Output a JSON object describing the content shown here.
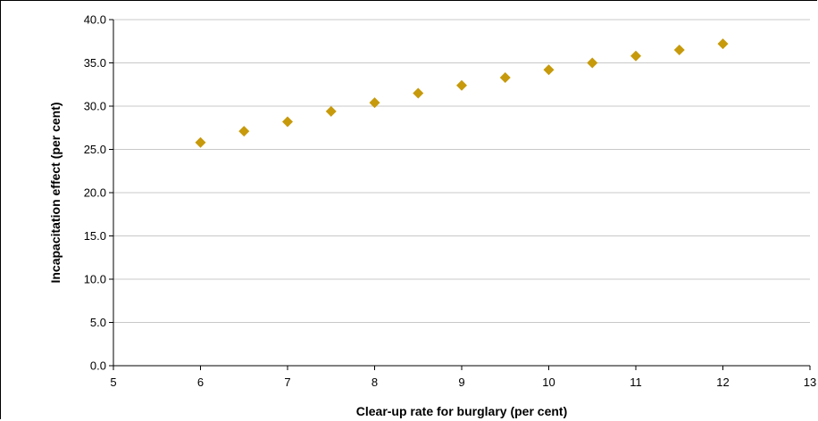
{
  "chart_data": {
    "type": "scatter",
    "title": "",
    "xlabel": "Clear-up rate for burglary (per cent)",
    "ylabel": "Incapacitation effect (per cent)",
    "xlim": [
      5,
      13
    ],
    "ylim": [
      0,
      40
    ],
    "x_ticks": [
      "5",
      "6",
      "7",
      "8",
      "9",
      "10",
      "11",
      "12",
      "13"
    ],
    "y_ticks": [
      "0.0",
      "5.0",
      "10.0",
      "15.0",
      "20.0",
      "25.0",
      "30.0",
      "35.0",
      "40.0"
    ],
    "grid": "horizontal",
    "legend": "none",
    "marker": "diamond",
    "marker_color": "#c79a0c",
    "x": [
      6,
      6.5,
      7,
      7.5,
      8,
      8.5,
      9,
      9.5,
      10,
      10.5,
      11,
      11.5,
      12
    ],
    "y": [
      25.8,
      27.1,
      28.2,
      29.4,
      30.4,
      31.5,
      32.4,
      33.3,
      34.2,
      35.0,
      35.8,
      36.5,
      37.2
    ]
  }
}
